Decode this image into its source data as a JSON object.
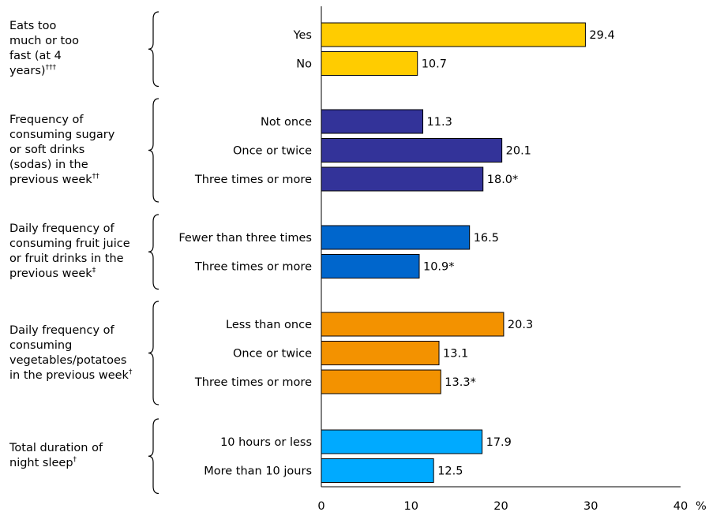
{
  "chart_data": {
    "type": "bar",
    "orientation": "horizontal",
    "x_unit": "%",
    "xlim": [
      0,
      40
    ],
    "x_ticks": [
      0,
      10,
      20,
      30,
      40
    ],
    "grid": false,
    "groups": [
      {
        "label": "Eats too much or too fast (at 4 years)",
        "label_lines": [
          "Eats too",
          "much or too",
          "fast (at 4",
          "years)"
        ],
        "marker": "†††",
        "color": "#FFCC00",
        "bars": [
          {
            "category": "Yes",
            "value": 29.4,
            "label": "29.4"
          },
          {
            "category": "No",
            "value": 10.7,
            "label": "10.7"
          }
        ]
      },
      {
        "label": "Frequency of consuming sugary or soft drinks (sodas) in the previous week",
        "label_lines": [
          "Frequency of",
          "consuming sugary",
          "or soft drinks",
          "(sodas) in the",
          "previous week"
        ],
        "marker": "††",
        "color": "#333399",
        "bars": [
          {
            "category": "Not once",
            "value": 11.3,
            "label": "11.3"
          },
          {
            "category": "Once or twice",
            "value": 20.1,
            "label": "20.1"
          },
          {
            "category": "Three times or more",
            "value": 18.0,
            "label": "18.0*"
          }
        ]
      },
      {
        "label": "Daily frequency of consuming fruit juice or fruit drinks in the previous week",
        "label_lines": [
          "Daily frequency of",
          "consuming fruit juice",
          "or fruit drinks in the",
          "previous week"
        ],
        "marker": "‡",
        "color": "#0066CC",
        "bars": [
          {
            "category": "Fewer than three times",
            "value": 16.5,
            "label": "16.5"
          },
          {
            "category": "Three times or more",
            "value": 10.9,
            "label": "10.9*"
          }
        ]
      },
      {
        "label": "Daily frequency of consuming vegetables/potatoes in the previous week",
        "label_lines": [
          "Daily frequency of",
          "consuming",
          "vegetables/potatoes",
          "in the previous week"
        ],
        "marker": "†",
        "color": "#F39200",
        "bars": [
          {
            "category": "Less than once",
            "value": 20.3,
            "label": "20.3"
          },
          {
            "category": "Once or twice",
            "value": 13.1,
            "label": "13.1"
          },
          {
            "category": "Three times or more",
            "value": 13.3,
            "label": "13.3*"
          }
        ]
      },
      {
        "label": "Total duration of night sleep",
        "label_lines": [
          "Total duration of",
          "night sleep"
        ],
        "marker": "†",
        "color": "#00AAFF",
        "bars": [
          {
            "category": "10 hours or less",
            "value": 17.9,
            "label": "17.9"
          },
          {
            "category": "More than 10 jours",
            "value": 12.5,
            "label": "12.5"
          }
        ]
      }
    ]
  }
}
